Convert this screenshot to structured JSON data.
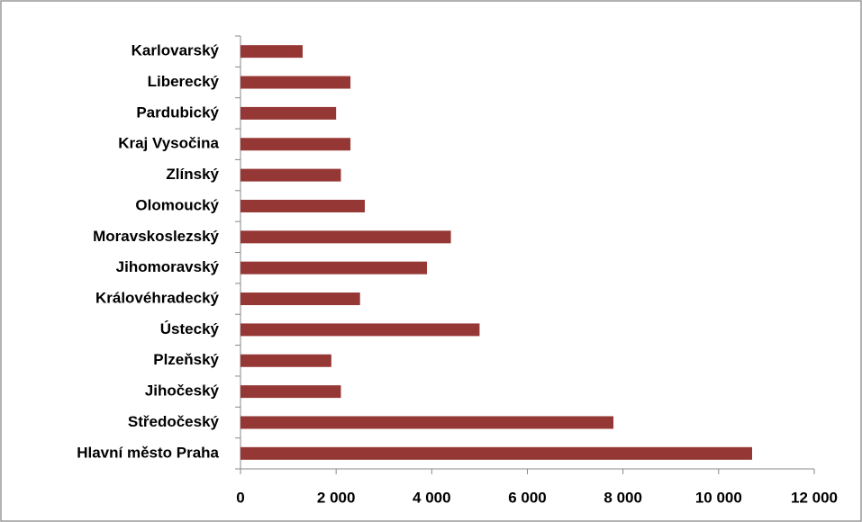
{
  "chart_data": {
    "type": "bar",
    "orientation": "horizontal",
    "categories": [
      "Karlovarský",
      "Liberecký",
      "Pardubický",
      "Kraj Vysočina",
      "Zlínský",
      "Olomoucký",
      "Moravskoslezský",
      "Jihomoravský",
      "Královéhradecký",
      "Ústecký",
      "Plzeňský",
      "Jihočeský",
      "Středočeský",
      "Hlavní město Praha"
    ],
    "values": [
      1300,
      2300,
      2000,
      2300,
      2100,
      2600,
      4400,
      3900,
      2500,
      5000,
      1900,
      2100,
      7800,
      10700
    ],
    "color": "#953735",
    "xlim": [
      0,
      12000
    ],
    "xticks": [
      0,
      {
        "value": 2000,
        "label": "2 000"
      },
      {
        "value": 4000,
        "label": "4 000"
      },
      {
        "value": 6000,
        "label": "6 000"
      },
      {
        "value": 8000,
        "label": "8 000"
      },
      {
        "value": 10000,
        "label": "10 000"
      },
      {
        "value": 12000,
        "label": "12 000"
      }
    ],
    "grid": false
  }
}
